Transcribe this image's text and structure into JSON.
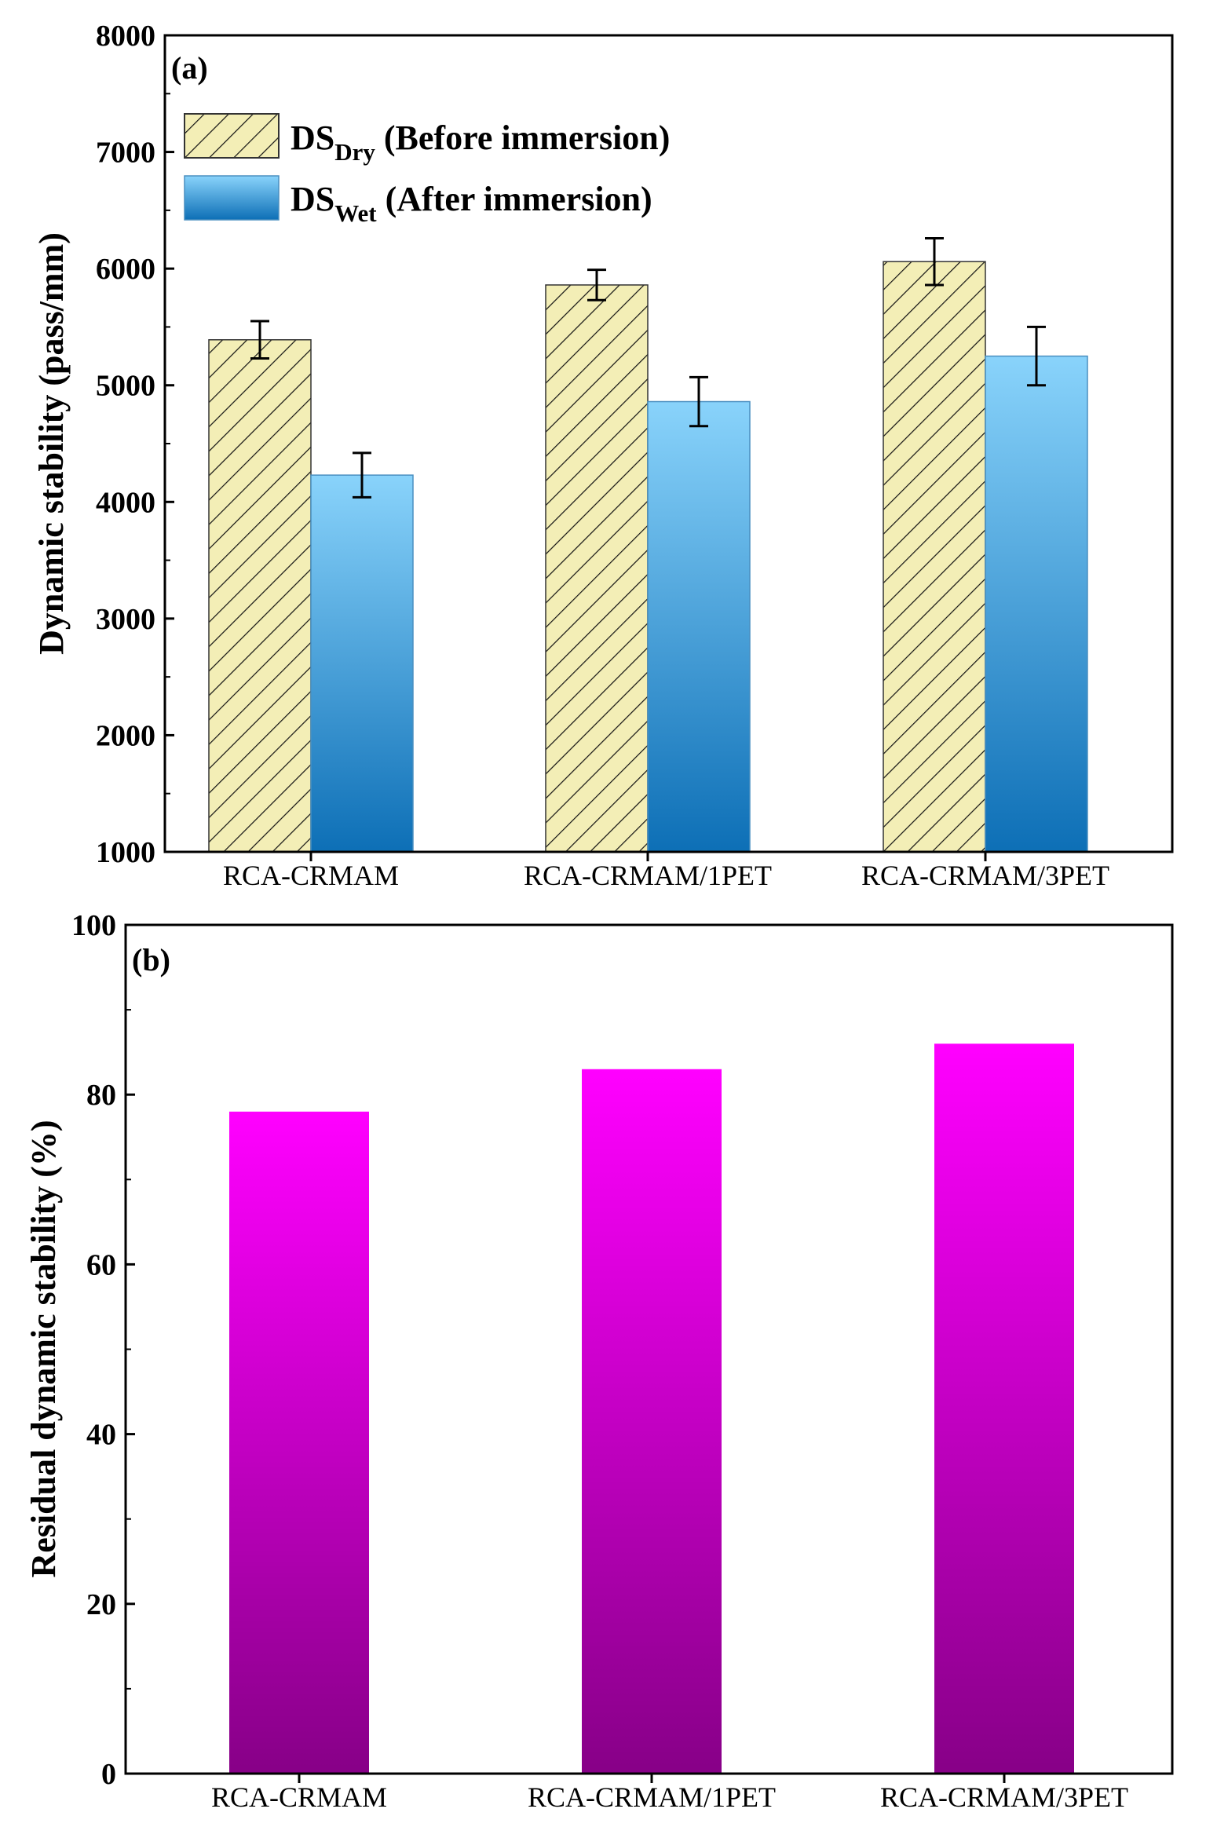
{
  "colors": {
    "dry_hatch_bg": "#f3eeb6",
    "dry_hatch_line": "#111111",
    "wet_top": "#89d3fb",
    "wet_bottom": "#0d6fb6",
    "residual_top": "#ff00ff",
    "residual_bottom": "#870087",
    "axis": "#000000"
  },
  "chart_data": [
    {
      "panel_label": "(a)",
      "type": "bar",
      "categories": [
        "RCA-CRMAM",
        "RCA-CRMAM/1PET",
        "RCA-CRMAM/3PET"
      ],
      "series": [
        {
          "name": "DS_Dry (Before immersion)",
          "legend": {
            "main": "DS",
            "sub": "Dry",
            "rest": " (Before immersion)"
          },
          "values": [
            5390,
            5860,
            6060
          ],
          "errors": [
            160,
            130,
            200
          ]
        },
        {
          "name": "DS_Wet (After immersion)",
          "legend": {
            "main": "DS",
            "sub": "Wet",
            "rest": " (After immersion)"
          },
          "values": [
            4230,
            4860,
            5250
          ],
          "errors": [
            190,
            210,
            250
          ]
        }
      ],
      "xlabel": "",
      "ylabel": "Dynamic stability (pass/mm)",
      "ylim": [
        1000,
        8000
      ],
      "yticks": [
        1000,
        2000,
        3000,
        4000,
        5000,
        6000,
        7000,
        8000
      ],
      "legend_position": "top-left"
    },
    {
      "panel_label": "(b)",
      "type": "bar",
      "categories": [
        "RCA-CRMAM",
        "RCA-CRMAM/1PET",
        "RCA-CRMAM/3PET"
      ],
      "values": [
        78,
        83,
        86
      ],
      "xlabel": "",
      "ylabel": "Residual dynamic stability (%)",
      "ylim": [
        0,
        100
      ],
      "yticks": [
        0,
        20,
        40,
        60,
        80,
        100
      ]
    }
  ]
}
